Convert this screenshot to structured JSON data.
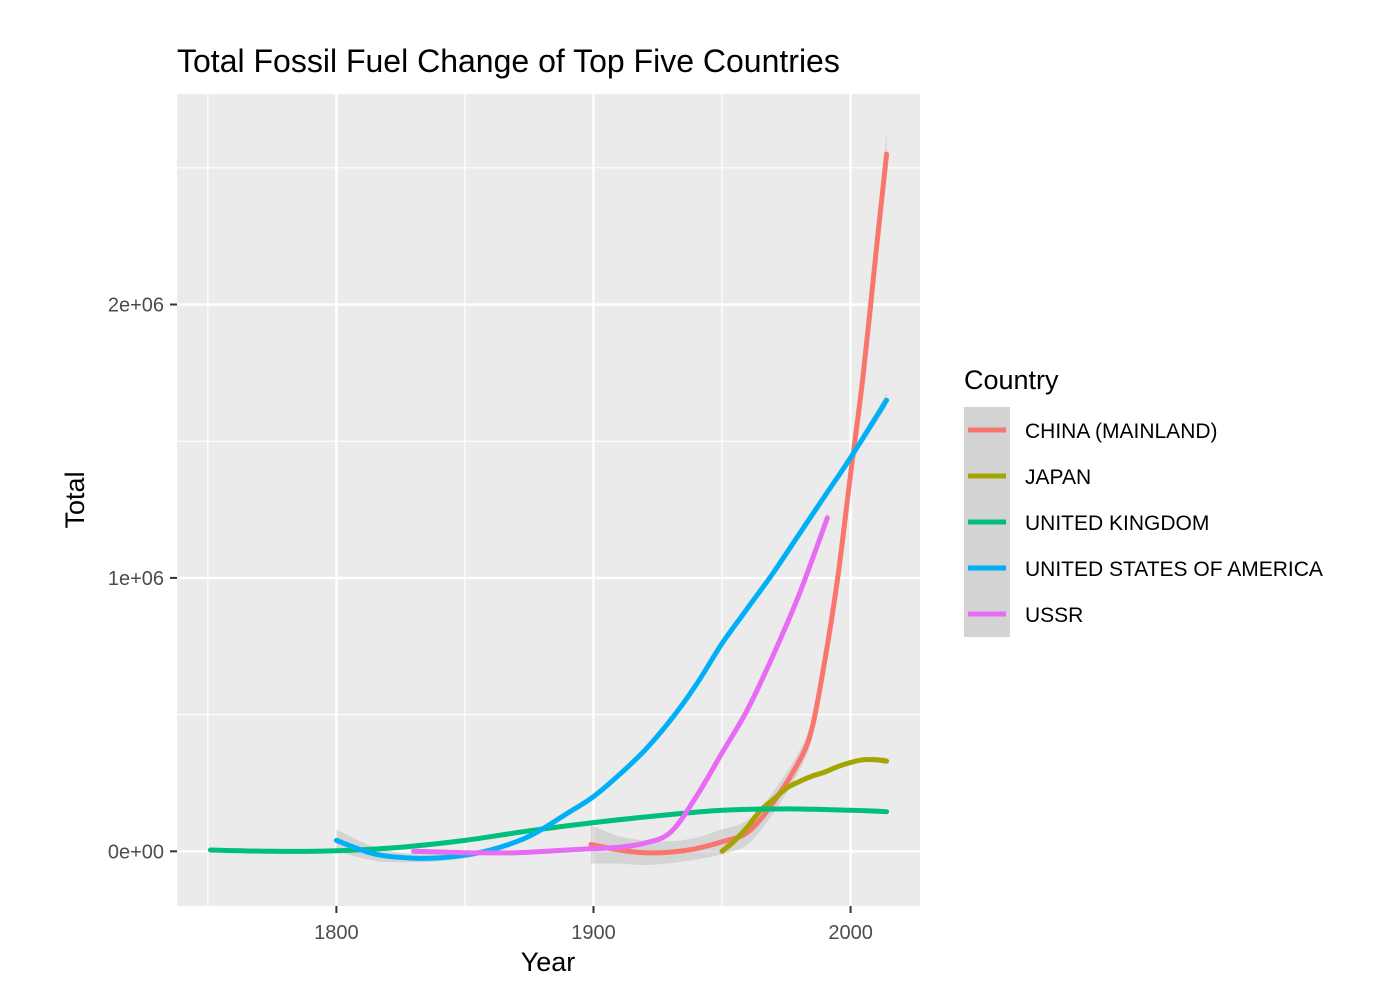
{
  "chart_data": {
    "type": "line",
    "title": "Total Fossil Fuel Change of Top Five Countries",
    "xlabel": "Year",
    "ylabel": "Total",
    "xlim": [
      1738,
      2027
    ],
    "ylim": [
      -200000,
      2770000
    ],
    "x_ticks": [
      1800,
      1900,
      2000
    ],
    "x_tick_labels": [
      "1800",
      "1900",
      "2000"
    ],
    "y_ticks": [
      0,
      1000000,
      2000000
    ],
    "y_tick_labels": [
      "0e+00",
      "1e+06",
      "2e+06"
    ],
    "grid": true,
    "legend": {
      "title": "Country",
      "position": "right"
    },
    "series": [
      {
        "name": "CHINA (MAINLAND)",
        "color": "#F8766D",
        "x": [
          1899,
          1910,
          1920,
          1930,
          1940,
          1950,
          1960,
          1970,
          1980,
          1985,
          1990,
          1995,
          2000,
          2005,
          2010,
          2014
        ],
        "y": [
          25000,
          5000,
          -5000,
          -3000,
          10000,
          35000,
          70000,
          180000,
          330000,
          450000,
          700000,
          1000000,
          1380000,
          1750000,
          2200000,
          2550000
        ],
        "se": [
          70000,
          50000,
          45000,
          40000,
          40000,
          45000,
          45000,
          40000,
          35000,
          35000,
          35000,
          35000,
          35000,
          40000,
          50000,
          80000
        ]
      },
      {
        "name": "JAPAN",
        "color": "#A3A500",
        "x": [
          1950,
          1955,
          1960,
          1965,
          1970,
          1975,
          1980,
          1985,
          1990,
          1995,
          2000,
          2005,
          2010,
          2014
        ],
        "y": [
          0,
          40000,
          90000,
          150000,
          190000,
          230000,
          255000,
          275000,
          290000,
          310000,
          325000,
          335000,
          335000,
          330000
        ],
        "se": [
          15000,
          12000,
          10000,
          10000,
          9000,
          9000,
          9000,
          9000,
          9000,
          9000,
          9000,
          9000,
          10000,
          12000
        ]
      },
      {
        "name": "UNITED KINGDOM",
        "color": "#00BF7D",
        "x": [
          1751,
          1775,
          1800,
          1825,
          1850,
          1875,
          1900,
          1925,
          1950,
          1975,
          2000,
          2014
        ],
        "y": [
          5000,
          0,
          2000,
          15000,
          40000,
          75000,
          105000,
          130000,
          150000,
          155000,
          150000,
          145000
        ],
        "se": [
          8000,
          6000,
          5000,
          5000,
          5000,
          5000,
          5000,
          5000,
          5000,
          5000,
          6000,
          8000
        ]
      },
      {
        "name": "UNITED STATES OF AMERICA",
        "color": "#00B0F6",
        "x": [
          1800,
          1815,
          1830,
          1845,
          1860,
          1875,
          1890,
          1900,
          1910,
          1920,
          1930,
          1940,
          1950,
          1960,
          1970,
          1980,
          1990,
          2000,
          2014
        ],
        "y": [
          40000,
          -10000,
          -25000,
          -20000,
          5000,
          55000,
          140000,
          200000,
          280000,
          370000,
          480000,
          610000,
          760000,
          890000,
          1020000,
          1160000,
          1300000,
          1440000,
          1650000
        ],
        "se": [
          40000,
          25000,
          15000,
          12000,
          10000,
          10000,
          10000,
          10000,
          10000,
          10000,
          10000,
          10000,
          10000,
          10000,
          10000,
          10000,
          12000,
          15000,
          25000
        ]
      },
      {
        "name": "USSR",
        "color": "#E76BF3",
        "x": [
          1830,
          1850,
          1870,
          1890,
          1900,
          1910,
          1920,
          1930,
          1940,
          1950,
          1960,
          1970,
          1980,
          1991
        ],
        "y": [
          0,
          -5000,
          -5000,
          5000,
          10000,
          15000,
          30000,
          70000,
          200000,
          360000,
          520000,
          720000,
          940000,
          1220000
        ],
        "se": [
          10000,
          8000,
          8000,
          8000,
          8000,
          8000,
          8000,
          8000,
          8000,
          8000,
          8000,
          10000,
          12000,
          20000
        ]
      }
    ]
  }
}
